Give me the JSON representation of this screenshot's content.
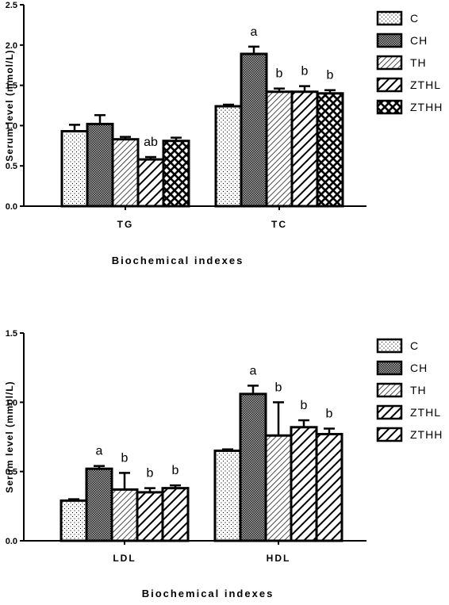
{
  "chart_data": [
    {
      "type": "bar",
      "categories": [
        "TG",
        "TC"
      ],
      "series": [
        {
          "name": "C",
          "values": [
            0.93,
            1.24
          ],
          "errors": [
            0.08,
            0.02
          ],
          "labels": [
            "",
            ""
          ]
        },
        {
          "name": "CH",
          "values": [
            1.02,
            1.89
          ],
          "errors": [
            0.11,
            0.09
          ],
          "labels": [
            "",
            "a"
          ]
        },
        {
          "name": "TH",
          "values": [
            0.83,
            1.42
          ],
          "errors": [
            0.03,
            0.04
          ],
          "labels": [
            "",
            "b"
          ]
        },
        {
          "name": "ZTHL",
          "values": [
            0.58,
            1.42
          ],
          "errors": [
            0.03,
            0.07
          ],
          "labels": [
            "ab",
            "b"
          ]
        },
        {
          "name": "ZTHH",
          "values": [
            0.81,
            1.4
          ],
          "errors": [
            0.04,
            0.04
          ],
          "labels": [
            "",
            "b"
          ]
        }
      ],
      "ylabel": "Serum level (mmol/L)",
      "xlabel": "Biochemical  indexes",
      "ylim": [
        0,
        2.5
      ],
      "yticks": [
        "0.0",
        "0.5",
        "1.0",
        "1.5",
        "2.0",
        "2.5"
      ],
      "grid": false,
      "legend": "top-right"
    },
    {
      "type": "bar",
      "categories": [
        "LDL",
        "HDL"
      ],
      "series": [
        {
          "name": "C",
          "values": [
            0.29,
            0.65
          ],
          "errors": [
            0.01,
            0.01
          ],
          "labels": [
            "",
            ""
          ]
        },
        {
          "name": "CH",
          "values": [
            0.52,
            1.06
          ],
          "errors": [
            0.02,
            0.06
          ],
          "labels": [
            "a",
            "a"
          ]
        },
        {
          "name": "TH",
          "values": [
            0.37,
            0.76
          ],
          "errors": [
            0.12,
            0.24
          ],
          "labels": [
            "b",
            "b"
          ]
        },
        {
          "name": "ZTHL",
          "values": [
            0.35,
            0.82
          ],
          "errors": [
            0.03,
            0.05
          ],
          "labels": [
            "b",
            "b"
          ]
        },
        {
          "name": "ZTHH",
          "values": [
            0.38,
            0.77
          ],
          "errors": [
            0.02,
            0.04
          ],
          "labels": [
            "b",
            "b"
          ]
        }
      ],
      "ylabel": "Serum level (mmol/L)",
      "xlabel": "Biochemical       indexes",
      "ylim": [
        0,
        1.5
      ],
      "yticks": [
        "0.0",
        "0.5",
        "1.0",
        "1.5"
      ],
      "grid": false,
      "legend": "top-right"
    }
  ]
}
